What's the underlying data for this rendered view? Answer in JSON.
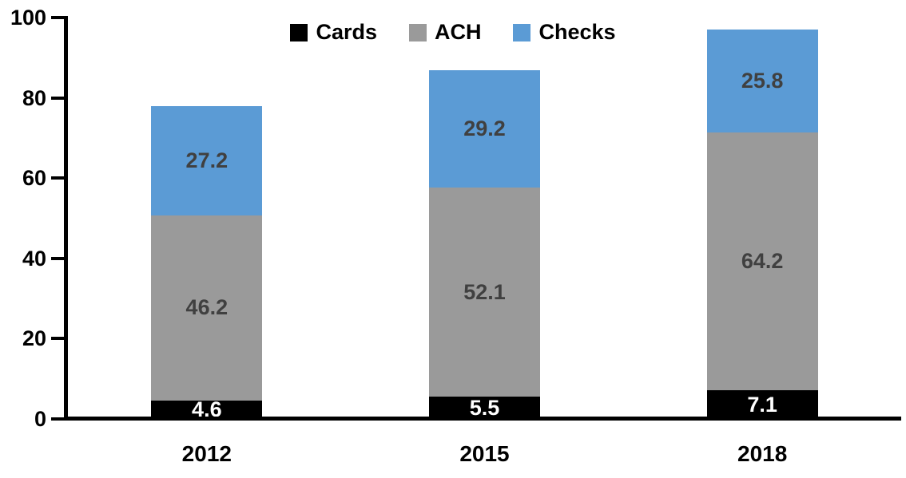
{
  "chart_data": {
    "type": "bar",
    "stacked": true,
    "title": "",
    "xlabel": "",
    "ylabel": "",
    "categories": [
      "2012",
      "2015",
      "2018"
    ],
    "series": [
      {
        "name": "Cards",
        "color": "#000000",
        "label_color": "#ffffff",
        "values": [
          4.6,
          5.5,
          7.1
        ]
      },
      {
        "name": "ACH",
        "color": "#9a9a9a",
        "label_color": "#404040",
        "values": [
          46.2,
          52.1,
          64.2
        ]
      },
      {
        "name": "Checks",
        "color": "#5b9bd5",
        "label_color": "#404040",
        "values": [
          27.2,
          29.2,
          25.8
        ]
      }
    ],
    "ylim": [
      0,
      100
    ],
    "yticks": [
      0,
      20,
      40,
      60,
      80,
      100
    ],
    "legend_position": "top-center",
    "legend_order": [
      "Cards",
      "ACH",
      "Checks"
    ],
    "grid": false,
    "axis_color": "#000000",
    "totals": [
      78.0,
      86.8,
      97.1
    ]
  }
}
